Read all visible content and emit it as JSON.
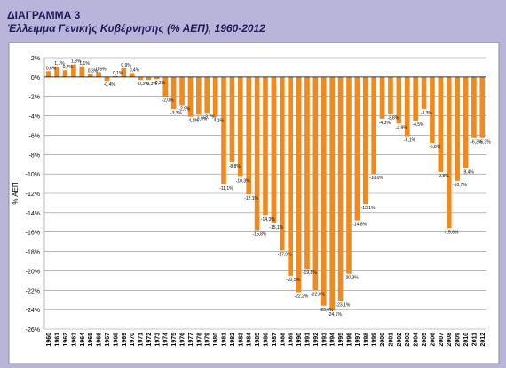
{
  "figure": {
    "label": "ΔΙΑΓΡΑΜΜΑ 3",
    "title": "Έλλειμμα Γενικής Κυβέρνησης (% ΑΕΠ), 1960-2012"
  },
  "colors": {
    "page_background": "#b9b4d9",
    "bar": "#f08a1e",
    "plot_background": "#ffffff",
    "frame": "#8d8d8d"
  },
  "chart_data": {
    "type": "bar",
    "title": "Έλλειμμα Γενικής Κυβέρνησης (% ΑΕΠ), 1960-2012",
    "xlabel": "",
    "ylabel": "% ΑΕΠ",
    "ylim": [
      -26,
      2
    ],
    "yticks": [
      2,
      0,
      -2,
      -4,
      -6,
      -8,
      -10,
      -12,
      -14,
      -16,
      -18,
      -20,
      -22,
      -24,
      -26
    ],
    "ytick_labels": [
      "2%",
      "0%",
      "-2%",
      "-4%",
      "-6%",
      "-8%",
      "-10%",
      "-12%",
      "-14%",
      "-16%",
      "-18%",
      "-20%",
      "-22%",
      "-24%",
      "-26%"
    ],
    "grid": true,
    "legend": "none",
    "categories": [
      "1960",
      "1961",
      "1962",
      "1963",
      "1964",
      "1965",
      "1966",
      "1967",
      "1968",
      "1969",
      "1970",
      "1971",
      "1972",
      "1973",
      "1974",
      "1975",
      "1976",
      "1977",
      "1978",
      "1979",
      "1980",
      "1981",
      "1982",
      "1983",
      "1984",
      "1985",
      "1986",
      "1987",
      "1988",
      "1989",
      "1990",
      "1991",
      "1992",
      "1993",
      "1994",
      "1995",
      "1996",
      "1997",
      "1998",
      "1999",
      "2000",
      "2001",
      "2002",
      "2003",
      "2004",
      "2005",
      "2006",
      "2007",
      "2008",
      "2009",
      "2010",
      "2011",
      "2012"
    ],
    "values": [
      0.6,
      1.1,
      0.7,
      1.3,
      1.1,
      0.3,
      0.5,
      -0.4,
      0.1,
      0.9,
      0.4,
      -0.3,
      -0.3,
      -0.2,
      -2.0,
      -3.3,
      -2.9,
      -4.1,
      -3.9,
      -3.7,
      -4.1,
      -11.1,
      -8.8,
      -10.3,
      -12.1,
      -15.8,
      -14.3,
      -15.1,
      -17.9,
      -20.5,
      -22.2,
      -19.8,
      -22.0,
      -23.6,
      -24.1,
      -23.1,
      -20.3,
      -14.8,
      -13.1,
      -10.0,
      -4.3,
      -3.8,
      -4.8,
      -6.1,
      -4.5,
      -3.3,
      -6.8,
      -9.8,
      -15.6,
      -10.7,
      -9.4,
      -6.3,
      -6.3
    ],
    "value_labels": [
      "0,6%",
      "1,1%",
      "0,7%",
      "1,3%",
      "1,1%",
      "0,3%",
      "0,5%",
      "-0,4%",
      "0,1%",
      "0,9%",
      "0,4%",
      "-0,3%",
      "-0,3%",
      "-0,2%",
      "-2,0%",
      "-3,3%",
      "-2,9%",
      "-4,1%",
      "-3,9%",
      "-3,7%",
      "-4,1%",
      "-11,1%",
      "-8,8%",
      "-10,3%",
      "-12,1%",
      "-15,8%",
      "-14,3%",
      "-15,1%",
      "-17,9%",
      "-20,5%",
      "-22,2%",
      "-19,8%",
      "-22,0%",
      "-23,6%",
      "-24,1%",
      "-23,1%",
      "-20,3%",
      "-14,8%",
      "-13,1%",
      "-10,0%",
      "-4,3%",
      "-3,8%",
      "-4,8%",
      "-6,1%",
      "-4,5%",
      "-3,3%",
      "-6,8%",
      "-9,8%",
      "-15,6%",
      "-10,7%",
      "-9,4%",
      "-6,3%",
      "-6,3%"
    ]
  }
}
